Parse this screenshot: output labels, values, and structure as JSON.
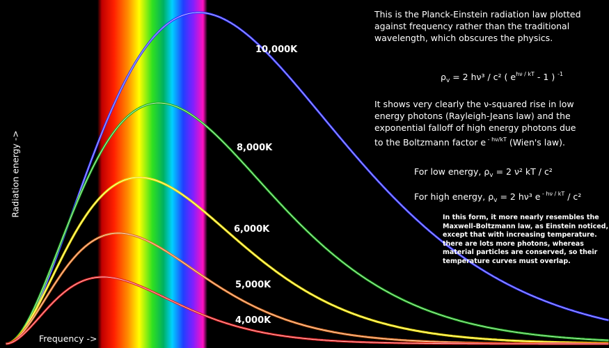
{
  "y_axis_label": "Radiation energy ->",
  "x_axis_label": "Frequency ->",
  "curve_labels": [
    "10,000K",
    "8,000K",
    "6,000K",
    "5,000K",
    "4,000K"
  ],
  "intro_lines": [
    "This is the Planck-Einstein radiation law plotted",
    "against frequency rather than the traditional",
    "wavelength, which obscures the physics."
  ],
  "formula": [
    "ρ",
    "v",
    " = 2 hν³ / c² ( e",
    "hν / kT",
    " - 1 ) ",
    "-1"
  ],
  "explanation_lines": [
    "It shows very clearly the ν-squared rise in low",
    "energy photons  (Rayleigh-Jeans law) and the",
    "exponential falloff of high energy photons due"
  ],
  "explanation_last": [
    "to the Boltzmann factor e",
    " - hν/kT",
    " (Wien's law)."
  ],
  "low_energy": [
    "For low energy, ρ",
    "v",
    " = 2 ν² kT / c²"
  ],
  "high_energy": [
    "For high energy, ρ",
    "v",
    " = 2 hν³ e",
    " - hν / kT",
    " / c²"
  ],
  "note_lines": [
    "In this form, it more nearly resembles the",
    "Maxwell-Boltzmann law, as Einstein noticed,",
    "except that with increasing temperature.",
    "there are lots more photons, whereas",
    "material particles are conserved, so their",
    "temperature curves must overlap."
  ]
}
